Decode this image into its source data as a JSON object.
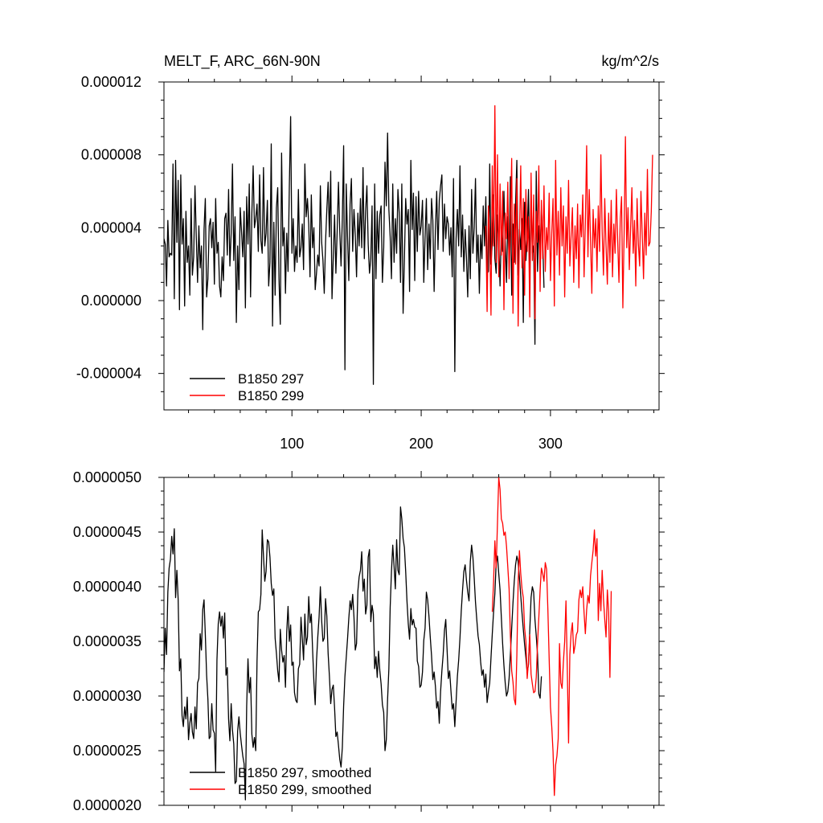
{
  "chart_data": [
    {
      "type": "line",
      "title": "MELT_F, ARC_66N-90N",
      "units": "kg/m^2/s",
      "xlim": [
        1,
        384
      ],
      "ylim": [
        -6e-06,
        1.2e-05
      ],
      "x_ticks": [
        100,
        200,
        300
      ],
      "x_tick_labels": [
        "100",
        "200",
        "300"
      ],
      "y_ticks": [
        -4e-06,
        0.0,
        4e-06,
        8e-06,
        1.2e-05
      ],
      "y_tick_labels": [
        "-0.000004",
        "0.000000",
        "0.000004",
        "0.000008",
        "0.000012"
      ],
      "legend_position": "bottom-left",
      "series": [
        {
          "name": "B1850 297",
          "color": "#000000",
          "x_start": 1,
          "values": [
            3.4e-06,
            3.1e-06,
            8e-07,
            4.4e-06,
            2.4e-06,
            2.6e-06,
            2.5e-06,
            7.5e-06,
            1e-07,
            7.7e-06,
            3.2e-06,
            6.6e-06,
            -5e-07,
            6.9e-06,
            3.1e-06,
            4.5e-06,
            -3e-07,
            4.9e-06,
            2.1e-06,
            3e-06,
            3e-07,
            5.6e-06,
            1.4e-06,
            2.4e-06,
            6.3e-06,
            3.5e-06,
            1e-06,
            4.1e-06,
            1.8e-06,
            3e-06,
            -1.6e-06,
            3.9e-06,
            5.6e-06,
            2e-07,
            1.2e-06,
            4.1e-06,
            4.5e-06,
            2.9e-06,
            4.3e-06,
            9e-07,
            5.6e-06,
            2.6e-06,
            3.2e-06,
            8e-07,
            2e-07,
            2.4e-06,
            1.1e-06,
            4.5e-06,
            4.8e-06,
            2.5e-06,
            6.1e-06,
            1.9e-06,
            3.7e-06,
            7.5e-06,
            2.2e-06,
            4.6e-06,
            -1.2e-06,
            3e-06,
            6e-07,
            5.1e-06,
            3.8e-06,
            2.4e-06,
            4.9e-06,
            -4e-07,
            5.7e-06,
            3.1e-06,
            6.4e-06,
            2e-07,
            4.8e-06,
            7.4e-06,
            4e-06,
            4.5e-06,
            5.3e-06,
            2.7e-06,
            6.9e-06,
            3.3e-06,
            2.6e-06,
            7.3e-06,
            3e-06,
            3.7e-06,
            5.5e-06,
            8e-07,
            2.1e-06,
            8.6e-06,
            -1.4e-06,
            4.3e-06,
            3e-07,
            5.1e-06,
            6.2e-06,
            1.2e-06,
            -1.3e-06,
            8.1e-06,
            3e-06,
            4e-06,
            4e-07,
            3.7e-06,
            1.6e-06,
            6.3e-06,
            1.01e-05,
            2.6e-06,
            4.5e-06,
            1.6e-06,
            3e-06,
            2.1e-06,
            6.1e-06,
            2.4e-06,
            2.9e-06,
            4.2e-06,
            1.7e-06,
            7.5e-06,
            4.6e-06,
            5.6e-06,
            4.2e-06,
            1.3e-06,
            5.8e-06,
            2.9e-06,
            4e-06,
            6e-07,
            1.5e-06,
            2.5e-06,
            1.9e-06,
            6.3e-06,
            3.2e-06,
            2.2e-06,
            4e-07,
            3.2e-06,
            5e-06,
            6.5e-06,
            3.5e-06,
            7.1e-06,
            1e-07,
            2.4e-06,
            4.7e-06,
            1.5e-06,
            3.8e-06,
            6.5e-06,
            3.8e-06,
            1.9e-06,
            4.5e-06,
            8.5e-06,
            -3.8e-06,
            6.4e-06,
            3.5e-06,
            1.1e-06,
            5.3e-06,
            6.7e-06,
            2.7e-06,
            5e-06,
            3.6e-06,
            1.3e-06,
            4.8e-06,
            3e-06,
            5.6e-06,
            2.9e-06,
            7.3e-06,
            2.3e-06,
            4.9e-06,
            6.3e-06,
            3.1e-06,
            1.5e-06,
            2.3e-06,
            5.2e-06,
            -4.6e-06,
            6.4e-06,
            1.2e-06,
            4.9e-06,
            2.6e-06,
            4.7e-06,
            5.2e-06,
            1e-06,
            2.9e-06,
            7.6e-06,
            5.2e-06,
            9.2e-06,
            5e-06,
            3.5e-06,
            1.2e-06,
            6.4e-06,
            2.1e-06,
            4.5e-06,
            2.6e-06,
            6.1e-06,
            4.8e-06,
            1e-06,
            6.4e-06,
            -7e-07,
            2.2e-06,
            5.6e-06,
            4.2e-06,
            5e-06,
            5e-07,
            7.7e-06,
            3.9e-06,
            5.9e-06,
            1.1e-06,
            5.7e-06,
            2.7e-06,
            6e-06,
            3.6e-06,
            4.1e-06,
            5.5e-06,
            1e-06,
            3.5e-06,
            5.6e-06,
            1.7e-06,
            4.2e-06,
            2.3e-06,
            5.6e-06,
            4.4e-06,
            5e-07,
            3.9e-06,
            6e-06,
            2.8e-06,
            5.5e-06,
            6.3e-06,
            6.9e-06,
            2.7e-06,
            5.3e-06,
            3.4e-06,
            4.6e-06,
            4.2e-06,
            2.5e-06,
            4e-06,
            1.3e-06,
            6.7e-06,
            -3.9e-06,
            3.4e-06,
            5e-06,
            3e-06,
            7.4e-06,
            2.4e-06,
            4.7e-06,
            1.6e-06,
            3.9e-06,
            2.4e-06,
            2e-07,
            4.1e-06,
            1.2e-06,
            6.1e-06,
            2.6e-06,
            4e-06,
            6.7e-06,
            2.1e-06,
            3.6e-06,
            4e-07,
            3.6e-06,
            2.3e-06,
            5.2e-06,
            3e-06,
            5.7e-06,
            1.5e-06,
            1.6e-06,
            7.5e-06,
            2e-06,
            3.2e-06,
            5.8e-06,
            2.3e-06,
            1.5e-06,
            4.7e-06,
            3.3e-06,
            8e-07,
            3.9e-06,
            2.7e-06,
            6e-06,
            3.2e-06,
            1e-06,
            4.6e-06,
            2.4e-06,
            6.8e-06,
            3e-07,
            4.2e-06,
            2.1e-06,
            5.3e-06,
            7.7e-06,
            1.4e-06,
            3.9e-06,
            2.8e-06,
            4.5e-06,
            -1.2e-06,
            5.4e-06,
            2.2e-06,
            3.6e-06,
            6.1e-06,
            1.7e-06,
            5.8e-06,
            2.6e-06,
            3e-06,
            -2.4e-06,
            7.1e-06,
            1.6e-06,
            4.1e-06,
            2.7e-06,
            5e-06,
            3.3e-06,
            7e-07
          ]
        },
        {
          "name": "B1850 299",
          "color": "#ff0000",
          "x_start": 250,
          "values": [
            4.1e-06,
            -6e-07,
            5.2e-06,
            3.4e-06,
            -8e-07,
            7.4e-06,
            3e-06,
            1.07e-05,
            2.1e-06,
            8e-06,
            1.3e-06,
            6.4e-06,
            2.5e-06,
            6e-06,
            -5e-07,
            4.8e-06,
            3.4e-06,
            6.5e-06,
            1.2e-06,
            4.1e-06,
            7.8e-06,
            -7e-07,
            5.3e-06,
            2e-06,
            6.7e-06,
            -1.4e-06,
            3.6e-06,
            7.4e-06,
            1.8e-06,
            5.6e-06,
            3e-07,
            6.1e-06,
            2.7e-06,
            4.6e-06,
            -9e-07,
            7e-06,
            2.2e-06,
            5.8e-06,
            -1e-06,
            4.9e-06,
            3.2e-06,
            7.4e-06,
            5e-07,
            5.5e-06,
            2.3e-06,
            6.3e-06,
            1.6e-06,
            4e-06,
            2.8e-06,
            5.9e-06,
            1.1e-06,
            3.7e-06,
            5.6e-06,
            -3e-07,
            7.7e-06,
            2.5e-06,
            4.9e-06,
            1.4e-06,
            6.2e-06,
            3e-06,
            5.2e-06,
            2e-07,
            4.6e-06,
            2.6e-06,
            6.6e-06,
            1.9e-06,
            3.6e-06,
            5.1e-06,
            1e-06,
            4.1e-06,
            2.3e-06,
            5.3e-06,
            7e-07,
            4.7e-06,
            3.5e-06,
            5.8e-06,
            1.3e-06,
            4.3e-06,
            8.5e-06,
            2.4e-06,
            6.1e-06,
            3.3e-06,
            4e-07,
            5e-06,
            2.9e-06,
            4.5e-06,
            1.6e-06,
            5.2e-06,
            2.7e-06,
            8e-06,
            3.8e-06,
            1.4e-06,
            5.6e-06,
            3e-06,
            9e-07,
            4.8e-06,
            2.1e-06,
            5.5e-06,
            1.3e-06,
            4.2e-06,
            2.6e-06,
            6.1e-06,
            3.3e-06,
            1e-06,
            4.5e-06,
            5.7e-06,
            -4e-07,
            3.7e-06,
            9e-06,
            2.9e-06,
            5.1e-06,
            1.7e-06,
            4e-06,
            6.2e-06,
            2.6e-06,
            4.4e-06,
            8e-07,
            5.6e-06,
            3.1e-06,
            1.9e-06,
            6e-06,
            3.6e-06,
            1.2e-06,
            4.8e-06,
            2.5e-06,
            7.2e-06,
            3e-06,
            3.2e-06,
            4.9e-06,
            8e-06
          ]
        }
      ]
    },
    {
      "type": "line",
      "xlim": [
        1,
        384
      ],
      "ylim": [
        2e-06,
        5e-06
      ],
      "x_ticks": [
        100,
        200,
        300
      ],
      "x_tick_labels": [],
      "y_ticks": [
        2e-06,
        2.5e-06,
        3e-06,
        3.5e-06,
        4e-06,
        4.5e-06,
        5e-06
      ],
      "y_tick_labels": [
        "0.0000020",
        "0.0000025",
        "0.0000030",
        "0.0000035",
        "0.0000040",
        "0.0000045",
        "0.0000050"
      ],
      "legend_position": "bottom-left",
      "series": [
        {
          "name": "B1850 297, smoothed",
          "color": "#000000",
          "x_start": 1,
          "values": [
            3.22e-06,
            3.62e-06,
            3.38e-06,
            3.95e-06,
            4.17e-06,
            4.25e-06,
            4.46e-06,
            4.3e-06,
            4.53e-06,
            3.9e-06,
            4.15e-06,
            3.88e-06,
            3.23e-06,
            3.34e-06,
            2.82e-06,
            2.72e-06,
            2.9e-06,
            2.79e-06,
            2.99e-06,
            2.6e-06,
            2.75e-06,
            2.84e-06,
            2.67e-06,
            2.61e-06,
            2.9e-06,
            2.7e-06,
            3.12e-06,
            3.16e-06,
            3.57e-06,
            3.42e-06,
            3.79e-06,
            3.88e-06,
            3.56e-06,
            3.19e-06,
            2.97e-06,
            2.61e-06,
            2.63e-06,
            2.93e-06,
            2.69e-06,
            2.66e-06,
            2.31e-06,
            3.33e-06,
            3.66e-06,
            3.77e-06,
            3.64e-06,
            3.73e-06,
            3.53e-06,
            3.76e-06,
            3.19e-06,
            3.26e-06,
            2.79e-06,
            2.59e-06,
            2.93e-06,
            2.69e-06,
            2.56e-06,
            2.2e-06,
            2.22e-06,
            2.68e-06,
            2.81e-06,
            2.66e-06,
            2.55e-06,
            2.45e-06,
            2.38e-06,
            2.05e-06,
            2.91e-06,
            3.34e-06,
            3.03e-06,
            3.17e-06,
            2.65e-06,
            2.53e-06,
            2.62e-06,
            2.5e-06,
            3.32e-06,
            3.77e-06,
            3.79e-06,
            3.93e-06,
            4.52e-06,
            4.28e-06,
            4.05e-06,
            4.14e-06,
            4.43e-06,
            4.41e-06,
            4.27e-06,
            4.03e-06,
            3.92e-06,
            3.98e-06,
            3.53e-06,
            3.39e-06,
            3.23e-06,
            3.13e-06,
            3.61e-06,
            3.42e-06,
            3.31e-06,
            3.37e-06,
            3.08e-06,
            3.59e-06,
            3.82e-06,
            3.5e-06,
            3.65e-06,
            3.28e-06,
            3.31e-06,
            3.03e-06,
            2.96e-06,
            2.94e-06,
            3.25e-06,
            3.29e-06,
            3.72e-06,
            3.53e-06,
            3.33e-06,
            3.75e-06,
            3.47e-06,
            3.54e-06,
            3.91e-06,
            3.67e-06,
            3.75e-06,
            3.42e-06,
            3.13e-06,
            2.92e-06,
            3.32e-06,
            3.54e-06,
            3.72e-06,
            4e-06,
            3.69e-06,
            3.5e-06,
            3.53e-06,
            3.89e-06,
            3.73e-06,
            3.39e-06,
            3.18e-06,
            2.93e-06,
            3.06e-06,
            3.1e-06,
            2.89e-06,
            2.63e-06,
            2.67e-06,
            2.55e-06,
            2.42e-06,
            2.35e-06,
            2.53e-06,
            2.91e-06,
            3.18e-06,
            3.35e-06,
            3.52e-06,
            3.71e-06,
            3.87e-06,
            3.79e-06,
            3.93e-06,
            3.72e-06,
            3.42e-06,
            3.48e-06,
            3.96e-06,
            4.09e-06,
            4.15e-06,
            4.32e-06,
            3.96e-06,
            4.07e-06,
            3.75e-06,
            3.83e-06,
            4.27e-06,
            4.34e-06,
            3.68e-06,
            3.83e-06,
            3.75e-06,
            3.25e-06,
            3.36e-06,
            3.17e-06,
            3.41e-06,
            3.23e-06,
            3.11e-06,
            2.92e-06,
            2.85e-06,
            2.5e-06,
            2.6e-06,
            2.97e-06,
            3.25e-06,
            3.81e-06,
            4.14e-06,
            4.38e-06,
            4.19e-06,
            3.98e-06,
            4.43e-06,
            4.15e-06,
            4.11e-06,
            4.73e-06,
            4.62e-06,
            4.44e-06,
            4.36e-06,
            4.14e-06,
            3.87e-06,
            3.66e-06,
            3.52e-06,
            3.8e-06,
            3.65e-06,
            3.7e-06,
            3.63e-06,
            3.62e-06,
            3.32e-06,
            3.27e-06,
            3.08e-06,
            3.1e-06,
            3.22e-06,
            3.51e-06,
            3.62e-06,
            3.95e-06,
            3.88e-06,
            3.73e-06,
            3.54e-06,
            3.37e-06,
            3.15e-06,
            3.22e-06,
            3.09e-06,
            2.89e-06,
            2.95e-06,
            2.75e-06,
            3.04e-06,
            3.23e-06,
            3.38e-06,
            3.6e-06,
            3.7e-06,
            3.43e-06,
            3.16e-06,
            3.23e-06,
            3.05e-06,
            2.88e-06,
            2.93e-06,
            2.72e-06,
            2.95e-06,
            3.18e-06,
            3.33e-06,
            3.53e-06,
            3.78e-06,
            3.97e-06,
            4.14e-06,
            4.2e-06,
            4.06e-06,
            3.95e-06,
            3.87e-06,
            4.23e-06,
            4.38e-06,
            4.27e-06,
            4.08e-06,
            3.86e-06,
            3.7e-06,
            3.55e-06,
            3.47e-06,
            3.31e-06,
            3.19e-06,
            3.24e-06,
            3.08e-06,
            3.2e-06,
            2.94e-06,
            3.04e-06,
            3.12e-06,
            3.35e-06,
            3.57e-06,
            3.77e-06,
            3.94e-06,
            4.22e-06,
            4.28e-06,
            4.12e-06,
            3.97e-06,
            3.72e-06,
            3.48e-06,
            3.28e-06,
            3.12e-06,
            3e-06,
            3.04e-06,
            3.16e-06,
            3.38e-06,
            3.62e-06,
            3.85e-06,
            4.05e-06,
            4.2e-06,
            4.28e-06,
            4.23e-06,
            4.08e-06,
            3.92e-06,
            3.76e-06,
            3.61e-06,
            3.47e-06,
            3.35e-06,
            3.21e-06,
            3.29e-06,
            3.6e-06,
            3.9e-06,
            4e-06,
            3.95e-06,
            3.7e-06,
            3.55e-06,
            3.38e-06,
            3.02e-06,
            2.98e-06,
            3.18e-06
          ]
        },
        {
          "name": "B1850 299, smoothed",
          "color": "#ff0000",
          "x_start": 255,
          "values": [
            3.77e-06,
            4.05e-06,
            4.42e-06,
            4.17e-06,
            4.58e-06,
            5e-06,
            4.89e-06,
            4.62e-06,
            4.58e-06,
            4.47e-06,
            4.5e-06,
            4.37e-06,
            4.18e-06,
            3.98e-06,
            3.55e-06,
            3.23e-06,
            3.13e-06,
            2.97e-06,
            2.92e-06,
            3.37e-06,
            4.04e-06,
            4.33e-06,
            4.12e-06,
            3.98e-06,
            3.9e-06,
            3.62e-06,
            3.5e-06,
            3.16e-06,
            3.32e-06,
            3.56e-06,
            3.2e-06,
            3.11e-06,
            3.03e-06,
            3.04e-06,
            3.17e-06,
            3.48e-06,
            3.72e-06,
            3.97e-06,
            4.17e-06,
            4.12e-06,
            4.05e-06,
            4.22e-06,
            4.16e-06,
            3.79e-06,
            3.34e-06,
            2.9e-06,
            2.72e-06,
            2.49e-06,
            2.09e-06,
            2.37e-06,
            2.45e-06,
            2.61e-06,
            3.48e-06,
            3.12e-06,
            3.07e-06,
            3.31e-06,
            3.5e-06,
            3.87e-06,
            3.26e-06,
            2.57e-06,
            3.38e-06,
            3.58e-06,
            3.67e-06,
            3.39e-06,
            3.46e-06,
            3.56e-06,
            3.59e-06,
            3.88e-06,
            3.97e-06,
            3.9e-06,
            4e-06,
            3.76e-06,
            3.57e-06,
            3.79e-06,
            3.92e-06,
            3.85e-06,
            4.1e-06,
            4.22e-06,
            4.33e-06,
            4.52e-06,
            4.28e-06,
            4.44e-06,
            3.69e-06,
            4.03e-06,
            3.78e-06,
            4.15e-06,
            3.89e-06,
            3.7e-06,
            3.54e-06,
            3.97e-06,
            3.77e-06,
            3.17e-06,
            3.96e-06
          ]
        }
      ]
    }
  ]
}
